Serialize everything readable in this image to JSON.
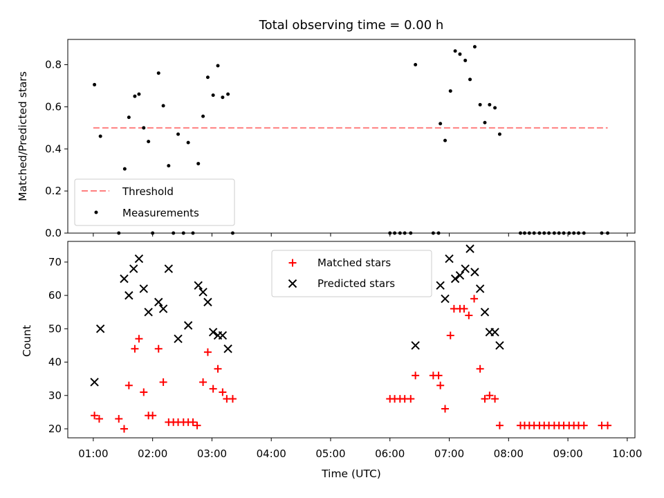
{
  "title": "Total observing time = 0.00 h",
  "colors": {
    "threshold": "#ff7f7f",
    "measurement": "#000000",
    "matched": "#ff0000",
    "predicted": "#000000"
  },
  "chart_data": [
    {
      "type": "scatter",
      "title": "Total observing time = 0.00 h",
      "ylabel": "Matched/Predicted stars",
      "xlabel": "",
      "ylim": [
        0,
        0.92
      ],
      "xlim_hours": [
        0.57,
        10.13
      ],
      "yticks": [
        0.0,
        0.2,
        0.4,
        0.6,
        0.8
      ],
      "ytick_labels": [
        "0.0",
        "0.2",
        "0.4",
        "0.6",
        "0.8"
      ],
      "legend_placement": "lower-left",
      "legend": [
        "Threshold",
        "Measurements"
      ],
      "threshold": {
        "name": "Threshold",
        "value": 0.5,
        "x_start": 1.0,
        "x_end": 9.67,
        "style": "dashed"
      },
      "series": [
        {
          "name": "Measurements",
          "marker": "dot",
          "x": [
            1.02,
            1.12,
            1.43,
            1.53,
            1.6,
            1.7,
            1.77,
            1.85,
            1.93,
            2.0,
            2.1,
            2.18,
            2.27,
            2.35,
            2.43,
            2.52,
            2.6,
            2.68,
            2.77,
            2.85,
            2.93,
            3.02,
            3.1,
            3.18,
            3.27,
            3.35,
            6.0,
            6.08,
            6.17,
            6.25,
            6.35,
            6.43,
            6.73,
            6.82,
            6.85,
            6.93,
            7.02,
            7.1,
            7.18,
            7.27,
            7.35,
            7.43,
            7.52,
            7.6,
            7.68,
            7.77,
            7.85,
            8.2,
            8.27,
            8.35,
            8.43,
            8.52,
            8.6,
            8.68,
            8.77,
            8.85,
            8.93,
            9.02,
            9.1,
            9.18,
            9.27,
            9.57,
            9.67
          ],
          "y": [
            0.705,
            0.46,
            0.0,
            0.305,
            0.55,
            0.65,
            0.66,
            0.5,
            0.435,
            0.0,
            0.76,
            0.605,
            0.32,
            0.0,
            0.47,
            0.0,
            0.43,
            0.0,
            0.33,
            0.555,
            0.74,
            0.655,
            0.795,
            0.645,
            0.66,
            0.0,
            0.0,
            0.0,
            0.0,
            0.0,
            0.0,
            0.8,
            0.0,
            0.0,
            0.52,
            0.44,
            0.675,
            0.865,
            0.85,
            0.82,
            0.73,
            0.885,
            0.61,
            0.525,
            0.61,
            0.595,
            0.47,
            0.0,
            0.0,
            0.0,
            0.0,
            0.0,
            0.0,
            0.0,
            0.0,
            0.0,
            0.0,
            0.0,
            0.0,
            0.0,
            0.0,
            0.0,
            0.0
          ]
        }
      ]
    },
    {
      "type": "scatter",
      "title": "",
      "ylabel": "Count",
      "xlabel": "Time (UTC)",
      "ylim": [
        17.3,
        76.2
      ],
      "xlim_hours": [
        0.57,
        10.13
      ],
      "yticks": [
        20,
        30,
        40,
        50,
        60,
        70
      ],
      "ytick_labels": [
        "20",
        "30",
        "40",
        "50",
        "60",
        "70"
      ],
      "xticks_hours": [
        1,
        2,
        3,
        4,
        5,
        6,
        7,
        8,
        9,
        10
      ],
      "xtick_labels": [
        "01:00",
        "02:00",
        "03:00",
        "04:00",
        "05:00",
        "06:00",
        "07:00",
        "08:00",
        "09:00",
        "10:00"
      ],
      "legend_placement": "upper-center",
      "legend": [
        "Matched stars",
        "Predicted stars"
      ],
      "series": [
        {
          "name": "Matched stars",
          "marker": "plus",
          "x": [
            1.02,
            1.1,
            1.43,
            1.52,
            1.6,
            1.7,
            1.77,
            1.85,
            1.93,
            2.0,
            2.1,
            2.18,
            2.27,
            2.35,
            2.43,
            2.52,
            2.6,
            2.68,
            2.75,
            2.85,
            2.93,
            3.02,
            3.1,
            3.18,
            3.25,
            3.35,
            6.0,
            6.08,
            6.17,
            6.25,
            6.35,
            6.43,
            6.73,
            6.82,
            6.85,
            6.93,
            7.02,
            7.08,
            7.18,
            7.25,
            7.33,
            7.42,
            7.52,
            7.6,
            7.68,
            7.77,
            7.85,
            8.2,
            8.27,
            8.35,
            8.43,
            8.52,
            8.6,
            8.68,
            8.77,
            8.85,
            8.93,
            9.02,
            9.1,
            9.18,
            9.27,
            9.57,
            9.67
          ],
          "y": [
            24,
            23,
            23,
            20,
            33,
            44,
            47,
            31,
            24,
            24,
            44,
            34,
            22,
            22,
            22,
            22,
            22,
            22,
            21,
            34,
            43,
            32,
            38,
            31,
            29,
            29,
            29,
            29,
            29,
            29,
            29,
            36,
            36,
            36,
            33,
            26,
            48,
            56,
            56,
            56,
            54,
            59,
            38,
            29,
            30,
            29,
            21,
            21,
            21,
            21,
            21,
            21,
            21,
            21,
            21,
            21,
            21,
            21,
            21,
            21,
            21,
            21,
            21
          ]
        },
        {
          "name": "Predicted stars",
          "marker": "x",
          "x": [
            1.02,
            1.12,
            1.52,
            1.6,
            1.68,
            1.77,
            1.85,
            1.93,
            2.1,
            2.18,
            2.27,
            2.43,
            2.6,
            2.77,
            2.85,
            2.93,
            3.02,
            3.1,
            3.18,
            3.27,
            6.43,
            6.85,
            6.93,
            7.0,
            7.1,
            7.18,
            7.27,
            7.35,
            7.43,
            7.52,
            7.6,
            7.68,
            7.77,
            7.85
          ],
          "y": [
            34,
            50,
            65,
            60,
            68,
            71,
            62,
            55,
            58,
            56,
            68,
            47,
            51,
            63,
            61,
            58,
            49,
            48,
            48,
            44,
            45,
            63,
            59,
            71,
            65,
            66,
            68,
            74,
            67,
            62,
            55,
            49,
            49,
            45
          ]
        }
      ]
    }
  ]
}
